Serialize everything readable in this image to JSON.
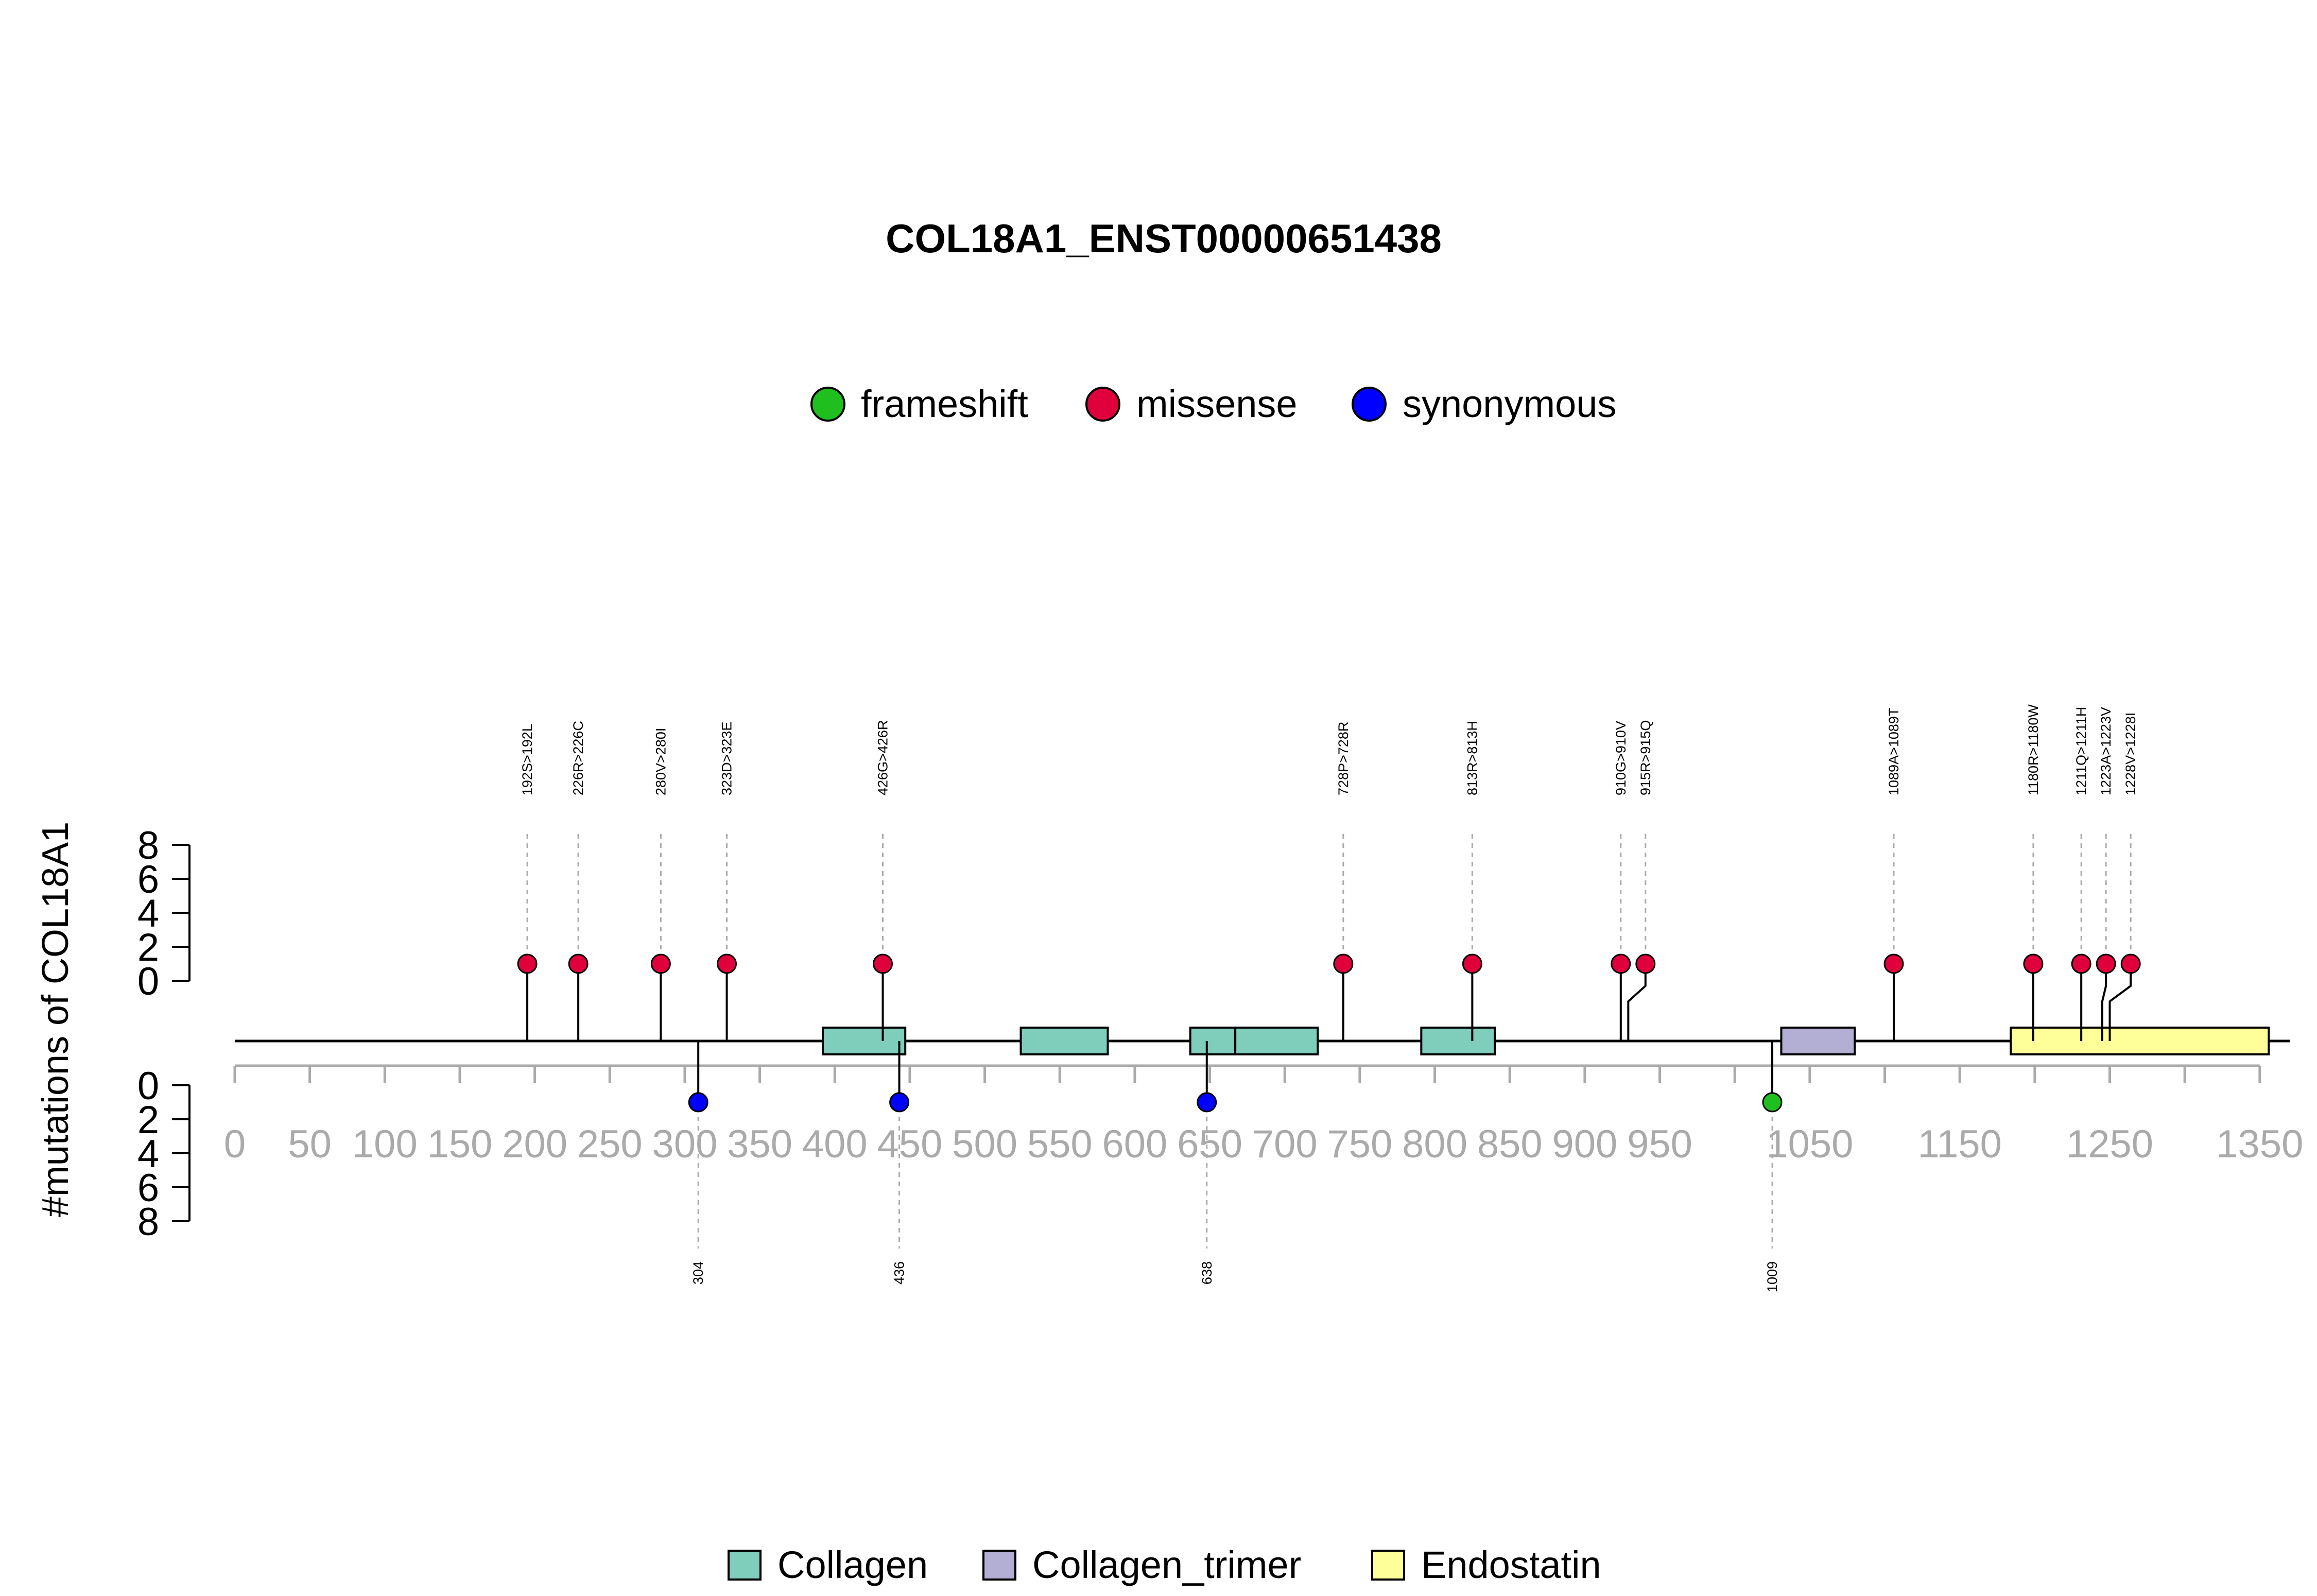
{
  "chart_data": {
    "type": "lollipop",
    "title": "COL18A1_ENST00000651438",
    "ylabel": "#mutations of COL18A1",
    "colors": {
      "frameshift": "#1fbf1f",
      "missense": "#e0003c",
      "synonymous": "#0000ff",
      "Collagen": "#7fcdbb",
      "Collagen_trimer": "#b3aed4",
      "Endostatin": "#ffff99",
      "axis_gray": "#aaaaaa",
      "guide_gray": "#aaaaaa"
    },
    "legend_top": {
      "placement": "top-center",
      "items": [
        {
          "label": "frameshift",
          "key": "frameshift"
        },
        {
          "label": "missense",
          "key": "missense"
        },
        {
          "label": "synonymous",
          "key": "synonymous"
        }
      ]
    },
    "legend_bottom": {
      "placement": "bottom-center",
      "items": [
        {
          "label": "Collagen",
          "key": "Collagen"
        },
        {
          "label": "Collagen_trimer",
          "key": "Collagen_trimer"
        },
        {
          "label": "Endostatin",
          "key": "Endostatin"
        }
      ]
    },
    "x_axis": {
      "range": [
        0,
        1370
      ],
      "ticks": [
        0,
        50,
        100,
        150,
        200,
        250,
        300,
        350,
        400,
        450,
        500,
        550,
        600,
        650,
        700,
        750,
        800,
        850,
        900,
        950,
        1000,
        1050,
        1100,
        1150,
        1200,
        1250,
        1300,
        1350
      ],
      "labels": [
        "0",
        "50",
        "100",
        "150",
        "200",
        "250",
        "300",
        "350",
        "400",
        "450",
        "500",
        "550",
        "600",
        "650",
        "700",
        "750",
        "800",
        "850",
        "900",
        "950",
        "",
        "1050",
        "",
        "1150",
        "",
        "1250",
        "",
        "1350"
      ]
    },
    "y_axis_top": {
      "range": [
        0,
        8
      ],
      "ticks": [
        0,
        2,
        4,
        6,
        8
      ]
    },
    "y_axis_bottom": {
      "range": [
        0,
        8
      ],
      "ticks": [
        0,
        2,
        4,
        6,
        8
      ]
    },
    "domains": [
      {
        "name": "Collagen",
        "start": 392,
        "end": 447
      },
      {
        "name": "Collagen",
        "start": 524,
        "end": 582
      },
      {
        "name": "Collagen",
        "start": 637,
        "end": 667
      },
      {
        "name": "Collagen",
        "start": 667,
        "end": 722
      },
      {
        "name": "Collagen",
        "start": 791,
        "end": 840
      },
      {
        "name": "Collagen_trimer",
        "start": 1031,
        "end": 1080
      },
      {
        "name": "Endostatin",
        "start": 1184,
        "end": 1356
      }
    ],
    "mutations_top": [
      {
        "pos": 195,
        "label": "192S>192L",
        "type": "missense",
        "count": 1
      },
      {
        "pos": 229,
        "label": "226R>226C",
        "type": "missense",
        "count": 1
      },
      {
        "pos": 284,
        "label": "280V>280I",
        "type": "missense",
        "count": 1
      },
      {
        "pos": 328,
        "label": "323D>323E",
        "type": "missense",
        "count": 1
      },
      {
        "pos": 432,
        "label": "426G>426R",
        "type": "missense",
        "count": 1
      },
      {
        "pos": 739,
        "label": "728P>728R",
        "type": "missense",
        "count": 1
      },
      {
        "pos": 825,
        "label": "813R>813H",
        "type": "missense",
        "count": 1
      },
      {
        "pos": 924,
        "label": "910G>910V",
        "type": "missense",
        "count": 1
      },
      {
        "pos": 929,
        "label": "915R>915Q",
        "type": "missense",
        "count": 1
      },
      {
        "pos": 1106,
        "label": "1089A>1089T",
        "type": "missense",
        "count": 1
      },
      {
        "pos": 1199,
        "label": "1180R>1180W",
        "type": "missense",
        "count": 1
      },
      {
        "pos": 1231,
        "label": "1211Q>1211H",
        "type": "missense",
        "count": 1
      },
      {
        "pos": 1245,
        "label": "1223A>1223V",
        "type": "missense",
        "count": 1
      },
      {
        "pos": 1250,
        "label": "1228V>1228I",
        "type": "missense",
        "count": 1
      }
    ],
    "mutations_bottom": [
      {
        "pos": 309,
        "label": "304",
        "type": "synonymous",
        "count": 1
      },
      {
        "pos": 443,
        "label": "436",
        "type": "synonymous",
        "count": 1
      },
      {
        "pos": 648,
        "label": "638",
        "type": "synonymous",
        "count": 1
      },
      {
        "pos": 1025,
        "label": "1009",
        "type": "frameshift",
        "count": 1
      }
    ]
  }
}
